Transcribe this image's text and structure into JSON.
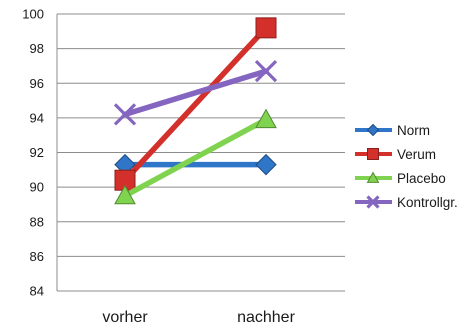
{
  "chart_data": {
    "type": "line",
    "categories": [
      "vorher",
      "nachher"
    ],
    "ylim": [
      84,
      100
    ],
    "yticks": [
      "84",
      "86",
      "88",
      "90",
      "92",
      "94",
      "96",
      "98",
      "100"
    ],
    "grid": "horizontal",
    "legend_position": "right",
    "series": [
      {
        "name": "Norm",
        "values": [
          91.3,
          91.3
        ],
        "color": "#2f75c8",
        "marker": "diamond"
      },
      {
        "name": "Verum",
        "values": [
          90.4,
          99.2
        ],
        "color": "#d4302b",
        "marker": "square"
      },
      {
        "name": "Placebo",
        "values": [
          89.5,
          93.9
        ],
        "color": "#7fd34e",
        "marker": "triangle"
      },
      {
        "name": "Kontrollgr.",
        "values": [
          94.2,
          96.7
        ],
        "color": "#8466c0",
        "marker": "x"
      }
    ]
  }
}
